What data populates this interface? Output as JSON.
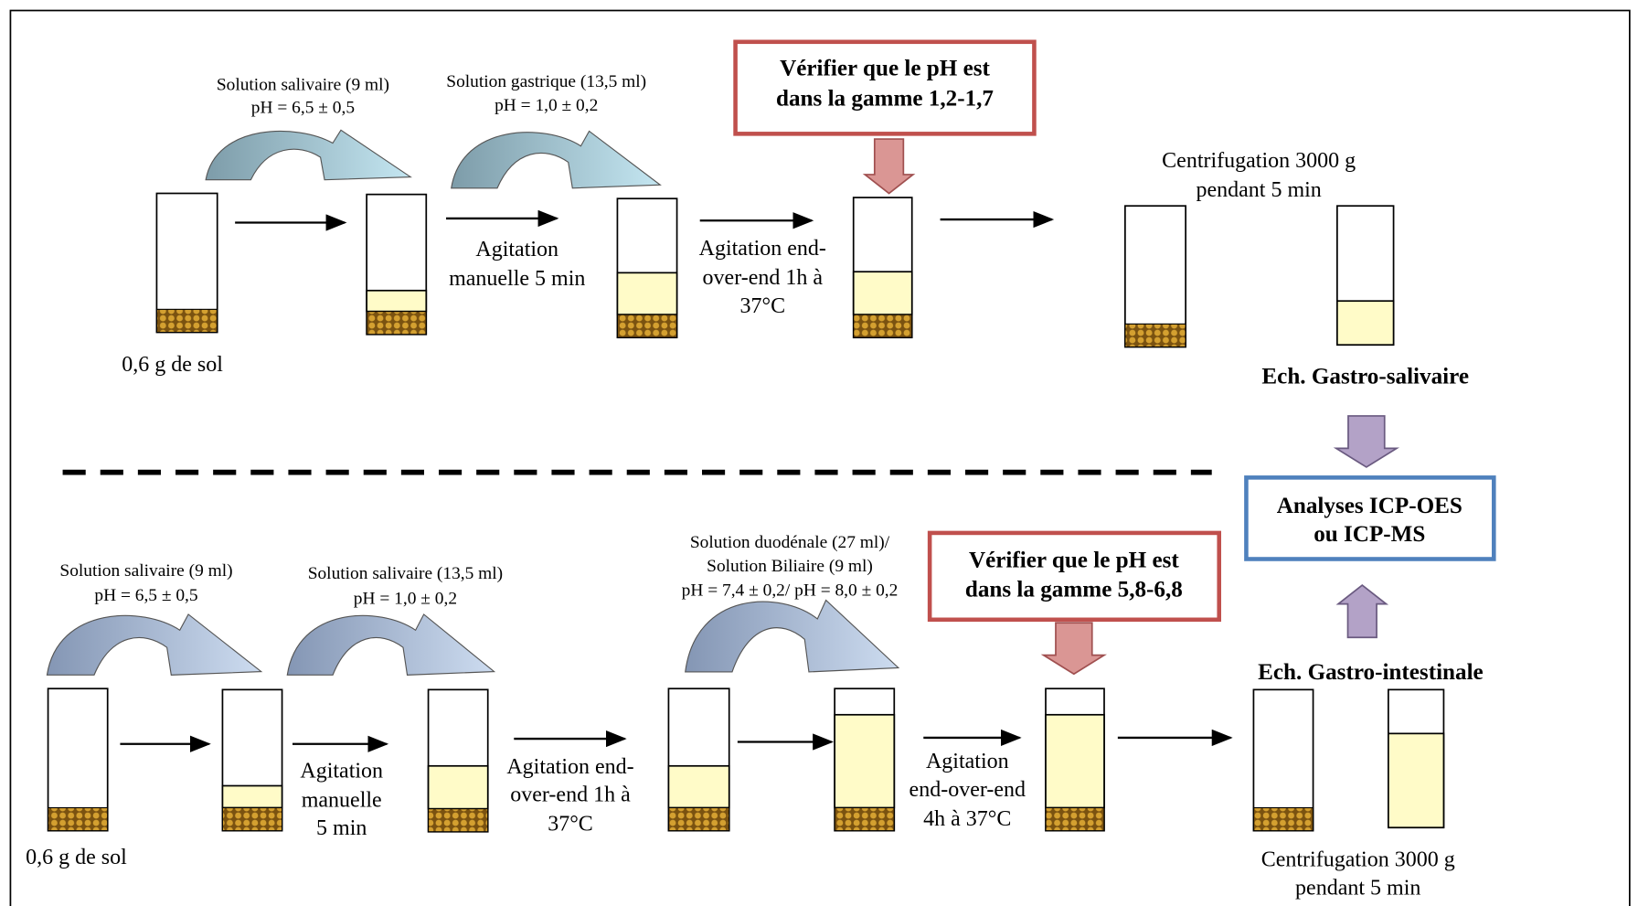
{
  "top": {
    "saliva": [
      "Solution salivaire (9 ml)",
      "pH = 6,5 ± 0,5"
    ],
    "gastric": [
      "Solution gastrique (13,5 ml)",
      "pH = 1,0 ± 0,2"
    ],
    "check": [
      "Vérifier que le pH est",
      "dans la gamme 1,2-1,7"
    ],
    "centrifuge": [
      "Centrifugation 3000 g",
      "pendant 5 min"
    ],
    "manual": [
      "Agitation",
      "manuelle 5 min"
    ],
    "endover": [
      "Agitation end-",
      "over-end 1h à",
      "37°C"
    ],
    "soil": "0,6 g de sol",
    "sample": "Ech. Gastro-salivaire"
  },
  "analysis": [
    "Analyses ICP-OES",
    "ou ICP-MS"
  ],
  "bottom": {
    "saliva": [
      "Solution salivaire (9 ml)",
      "pH = 6,5 ± 0,5"
    ],
    "saliva2": [
      "Solution salivaire (13,5 ml)",
      "pH = 1,0 ± 0,2"
    ],
    "duodenal": [
      "Solution duodénale (27 ml)/",
      "Solution Biliaire (9 ml)",
      "pH = 7,4 ± 0,2/ pH = 8,0 ± 0,2"
    ],
    "check": [
      "Vérifier que le pH est",
      "dans la gamme 5,8-6,8"
    ],
    "manual": [
      "Agitation",
      "manuelle",
      "5 min"
    ],
    "endover": [
      "Agitation end-",
      "over-end 1h à",
      "37°C"
    ],
    "endover4": [
      "Agitation",
      "end-over-end",
      "4h à 37°C"
    ],
    "soil": "0,6 g de sol",
    "sample": "Ech. Gastro-intestinale",
    "centrifuge": [
      "Centrifugation 3000 g",
      "pendant 5 min"
    ]
  }
}
